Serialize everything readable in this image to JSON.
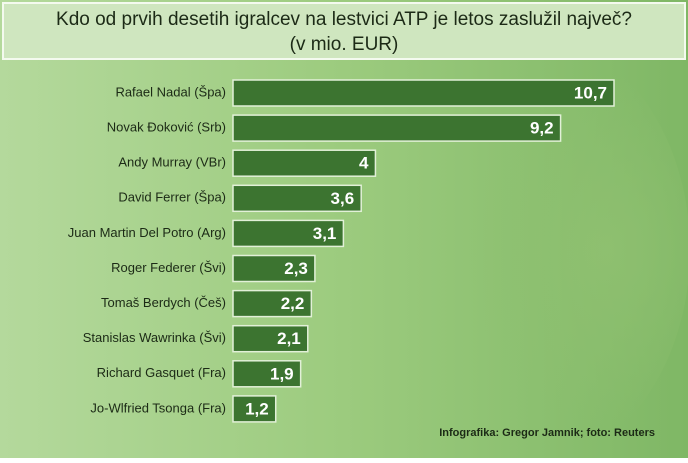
{
  "chart_data": {
    "type": "bar",
    "orientation": "horizontal",
    "title": "Kdo od prvih desetih igralcev na lestvici ATP je letos zaslužil največ?",
    "subtitle": "(v mio. EUR)",
    "categories": [
      "Rafael Nadal (Špa)",
      "Novak Đoković (Srb)",
      "Andy Murray (VBr)",
      "David Ferrer (Špa)",
      "Juan Martin Del Potro (Arg)",
      "Roger Federer (Švi)",
      "Tomaš Berdych (Češ)",
      "Stanislas Wawrinka (Švi)",
      "Richard Gasquet (Fra)",
      "Jo-Wlfried Tsonga (Fra)"
    ],
    "values": [
      10.7,
      9.2,
      4,
      3.6,
      3.1,
      2.3,
      2.2,
      2.1,
      1.9,
      1.2
    ],
    "value_labels": [
      "10,7",
      "9,2",
      "4",
      "3,6",
      "3,1",
      "2,3",
      "2,2",
      "2,1",
      "1,9",
      "1,2"
    ],
    "color": "#3c7430",
    "source": "Infografika: Gregor Jamnik; foto: Reuters"
  }
}
